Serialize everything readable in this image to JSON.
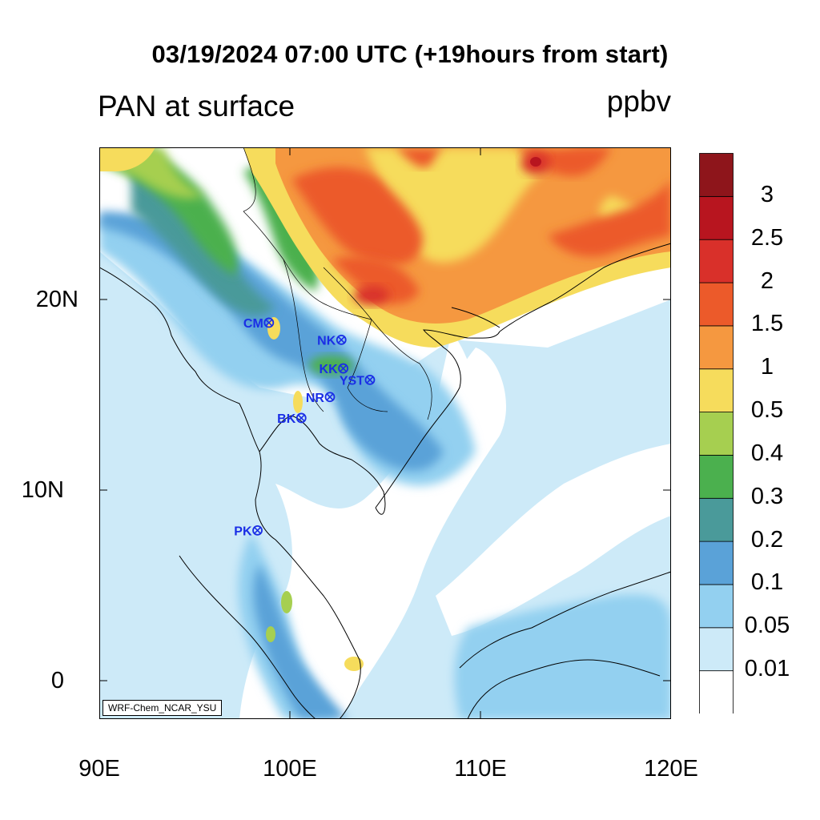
{
  "header": {
    "title": "03/19/2024 07:00 UTC (+19hours from start)",
    "left_subtitle": "PAN at surface",
    "right_subtitle": "ppbv"
  },
  "axes": {
    "y_labels": [
      "20N",
      "10N",
      "0"
    ],
    "x_labels": [
      "90E",
      "100E",
      "110E",
      "120E"
    ],
    "lon_range": [
      90,
      120
    ],
    "lat_range": [
      -2,
      28
    ]
  },
  "stations": [
    {
      "name": "CM",
      "lon": 98.9,
      "lat": 18.8
    },
    {
      "name": "NK",
      "lon": 102.7,
      "lat": 17.9
    },
    {
      "name": "KK",
      "lon": 102.8,
      "lat": 16.4
    },
    {
      "name": "YST",
      "lon": 104.2,
      "lat": 15.8
    },
    {
      "name": "NR",
      "lon": 102.1,
      "lat": 14.9
    },
    {
      "name": "BK",
      "lon": 100.6,
      "lat": 13.8
    },
    {
      "name": "PK",
      "lon": 98.3,
      "lat": 7.9
    }
  ],
  "colorbar": {
    "colors": [
      "#ffffff",
      "#cdeaf8",
      "#93d0f0",
      "#5aa2d8",
      "#4a9a9a",
      "#4bb04e",
      "#a6cf50",
      "#f6dc5c",
      "#f59840",
      "#ec5a2a",
      "#d9302a",
      "#b8151f",
      "#8e151b"
    ],
    "labels": [
      "0.01",
      "0.05",
      "0.1",
      "0.2",
      "0.3",
      "0.4",
      "0.5",
      "1",
      "1.5",
      "2",
      "2.5",
      "3"
    ]
  },
  "credit": "WRF-Chem_NCAR_YSU"
}
